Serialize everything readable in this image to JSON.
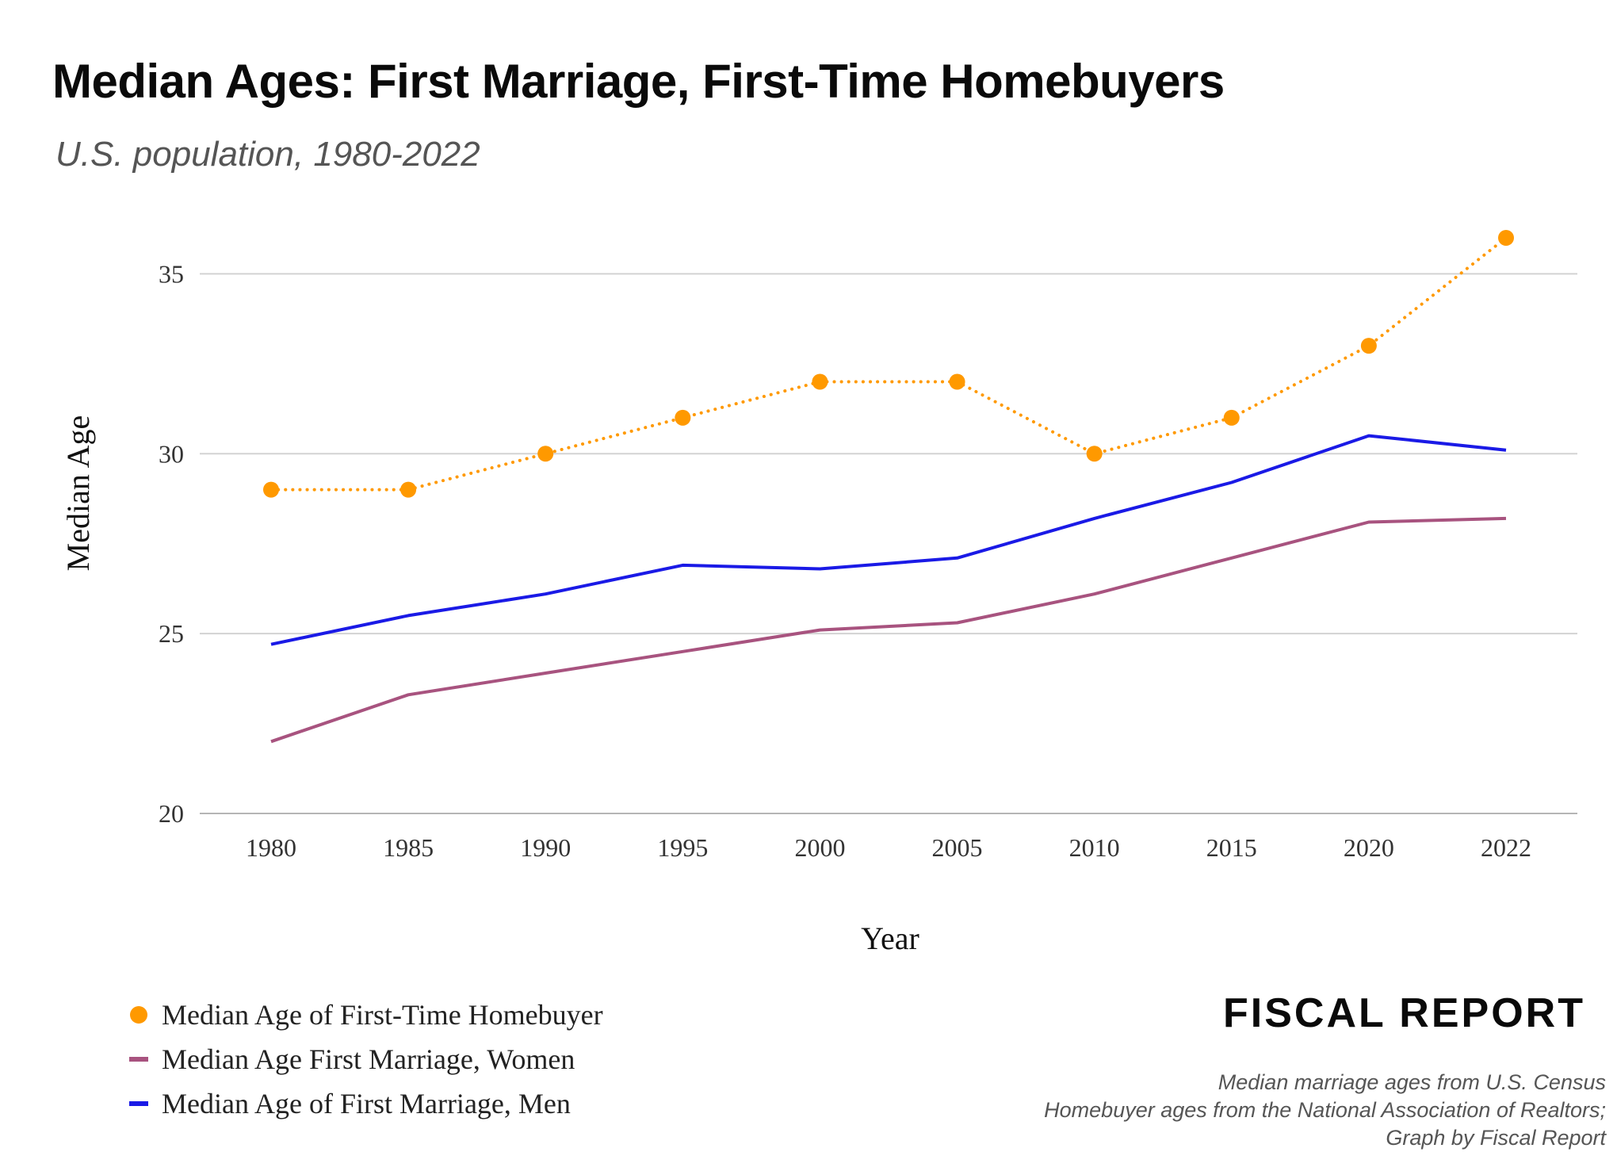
{
  "title": "Median Ages: First Marriage, First-Time Homebuyers",
  "subtitle": "U.S. population, 1980-2022",
  "brand": "FISCAL REPORT",
  "source_lines": [
    "Median marriage ages from U.S. Census",
    "Homebuyer ages from the National Association of Realtors;",
    "Graph by Fiscal Report"
  ],
  "chart_data": {
    "type": "line",
    "categories": [
      "1980",
      "1985",
      "1990",
      "1995",
      "2000",
      "2005",
      "2010",
      "2015",
      "2020",
      "2022"
    ],
    "series": [
      {
        "name": "Median Age of First-Time Homebuyer",
        "values": [
          29,
          29,
          30,
          31,
          32,
          32,
          30,
          31,
          33,
          36
        ],
        "color": "#FF9900",
        "style": "dotted",
        "markers": true
      },
      {
        "name": "Median Age First Marriage, Women",
        "values": [
          22.0,
          23.3,
          23.9,
          24.5,
          25.1,
          25.3,
          26.1,
          27.1,
          28.1,
          28.2
        ],
        "color": "#A8537F",
        "style": "solid",
        "markers": false
      },
      {
        "name": "Median Age of First Marriage, Men",
        "values": [
          24.7,
          25.5,
          26.1,
          26.9,
          26.8,
          27.1,
          28.2,
          29.2,
          30.5,
          30.1
        ],
        "color": "#1A1AE6",
        "style": "solid",
        "markers": false
      }
    ],
    "xlabel": "Year",
    "ylabel": "Median Age",
    "ylim": [
      20,
      36
    ],
    "yticks": [
      20,
      25,
      30,
      35
    ],
    "grid": true,
    "legend_position": "bottom-left"
  }
}
